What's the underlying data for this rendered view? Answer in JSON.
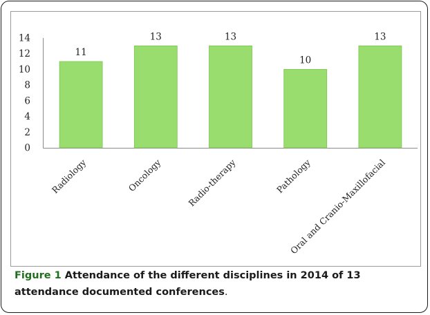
{
  "chart_data": {
    "type": "bar",
    "categories": [
      "Radiology",
      "Oncology",
      "Radio-therapy",
      "Pathology",
      "Oral and Cranio-Maxillofacial"
    ],
    "values": [
      11,
      13,
      13,
      10,
      13
    ],
    "data_labels": [
      "11",
      "13",
      "13",
      "10",
      "13"
    ],
    "title": "",
    "xlabel": "",
    "ylabel": "",
    "ylim": [
      0,
      14
    ],
    "yticks": [
      "0",
      "2",
      "4",
      "6",
      "8",
      "10",
      "12",
      "14"
    ],
    "grid": false,
    "legend": "none",
    "bar_color": "#99dd6e",
    "bar_edge_color": "#7cc451"
  },
  "caption": {
    "lead": "Figure 1",
    "body": " Attendance of the different disciplines in 2014 of 13 attendance documented conferences",
    "tail": "."
  }
}
